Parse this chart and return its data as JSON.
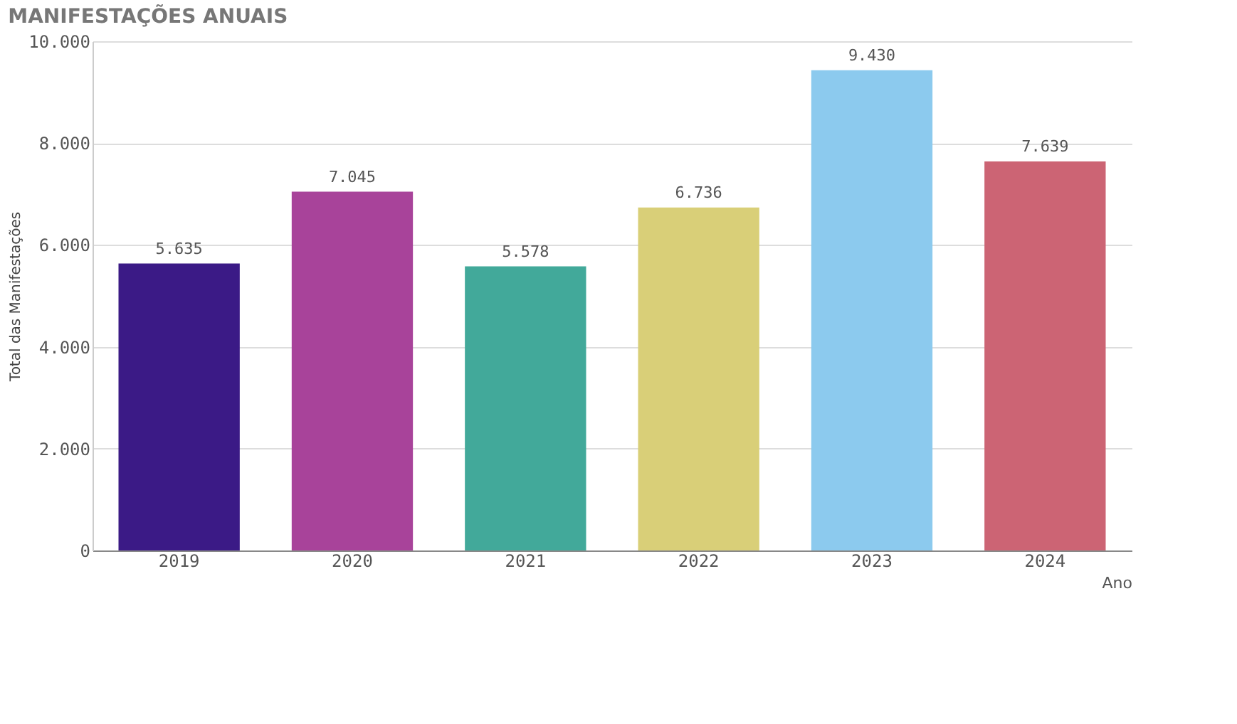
{
  "chart_data": {
    "type": "bar",
    "title": "MANIFESTAÇÕES ANUAIS",
    "xlabel": "Ano",
    "ylabel": "Total das Manifestações",
    "categories": [
      "2019",
      "2020",
      "2021",
      "2022",
      "2023",
      "2024"
    ],
    "values": [
      5635,
      7045,
      5578,
      6736,
      9430,
      7639
    ],
    "colors": [
      "#3b1a86",
      "#a8439a",
      "#42a99a",
      "#d9cf78",
      "#8ccaee",
      "#cc6474"
    ],
    "value_labels": [
      "5.635",
      "7.045",
      "5.578",
      "6.736",
      "9.430",
      "7.639"
    ],
    "ylim": [
      0,
      10000
    ],
    "yticks": [
      {
        "value": 0,
        "label": "0"
      },
      {
        "value": 2000,
        "label": "2.000"
      },
      {
        "value": 4000,
        "label": "4.000"
      },
      {
        "value": 6000,
        "label": "6.000"
      },
      {
        "value": 8000,
        "label": "8.000"
      },
      {
        "value": 10000,
        "label": "10.000"
      }
    ],
    "grid": "y"
  }
}
